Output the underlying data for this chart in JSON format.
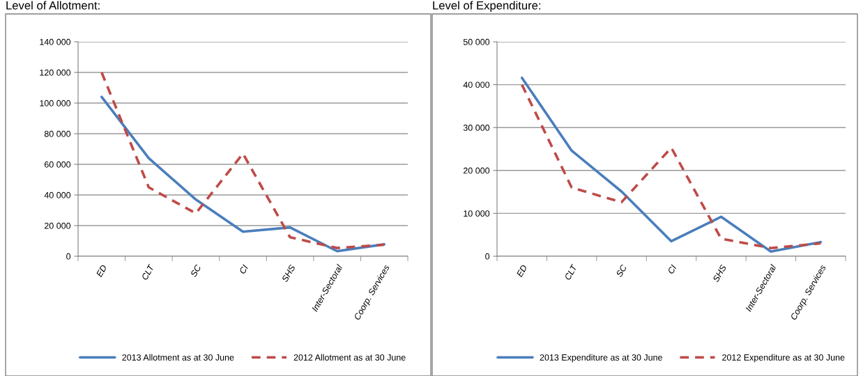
{
  "chart_data": [
    {
      "type": "line",
      "title": "Level of Allotment:",
      "categories": [
        "ED",
        "CLT",
        "SC",
        "CI",
        "SHS",
        "Inter-Sectoral",
        "Coorp. Services"
      ],
      "series": [
        {
          "name": "2013 Allotment as at 30 June",
          "color": "#4a7ebb",
          "line_style": "solid",
          "values": [
            104000,
            64000,
            37000,
            16000,
            18800,
            3300,
            7800
          ]
        },
        {
          "name": "2012 Allotment as at 30 June",
          "color": "#be4b48",
          "line_style": "dashed",
          "values": [
            120000,
            45000,
            28000,
            67000,
            12400,
            5400,
            7500
          ]
        }
      ],
      "ylim": [
        0,
        140000
      ],
      "yticks": [
        0,
        {
          "value": 20000,
          "label": "20 000"
        },
        {
          "value": 40000,
          "label": "40 000"
        },
        {
          "value": 60000,
          "label": "60 000"
        },
        {
          "value": 80000,
          "label": "80 000"
        },
        {
          "value": 100000,
          "label": "100 000"
        },
        {
          "value": 120000,
          "label": "120 000"
        },
        {
          "value": 140000,
          "label": "140 000"
        }
      ],
      "grid": "y",
      "legend": "bottom",
      "marker": "none"
    },
    {
      "type": "line",
      "title": "Level of Expenditure:",
      "categories": [
        "ED",
        "CLT",
        "SC",
        "CI",
        "SHS",
        "Inter-Sectoral",
        "Coorp. Services"
      ],
      "series": [
        {
          "name": "2013 Expenditure as at 30 June",
          "color": "#4a7ebb",
          "line_style": "solid",
          "values": [
            41600,
            24600,
            15100,
            3500,
            9200,
            1100,
            3300
          ]
        },
        {
          "name": "2012 Expenditure as at 30 June",
          "color": "#be4b48",
          "line_style": "dashed",
          "values": [
            40000,
            16000,
            12600,
            25300,
            4100,
            1900,
            3000
          ]
        }
      ],
      "ylim": [
        0,
        50000
      ],
      "yticks": [
        0,
        {
          "value": 10000,
          "label": "10 000"
        },
        {
          "value": 20000,
          "label": "20 000"
        },
        {
          "value": 30000,
          "label": "30 000"
        },
        {
          "value": 40000,
          "label": "40 000"
        },
        {
          "value": 50000,
          "label": "50 000"
        }
      ],
      "grid": "y",
      "legend": "bottom",
      "marker": "none"
    }
  ]
}
